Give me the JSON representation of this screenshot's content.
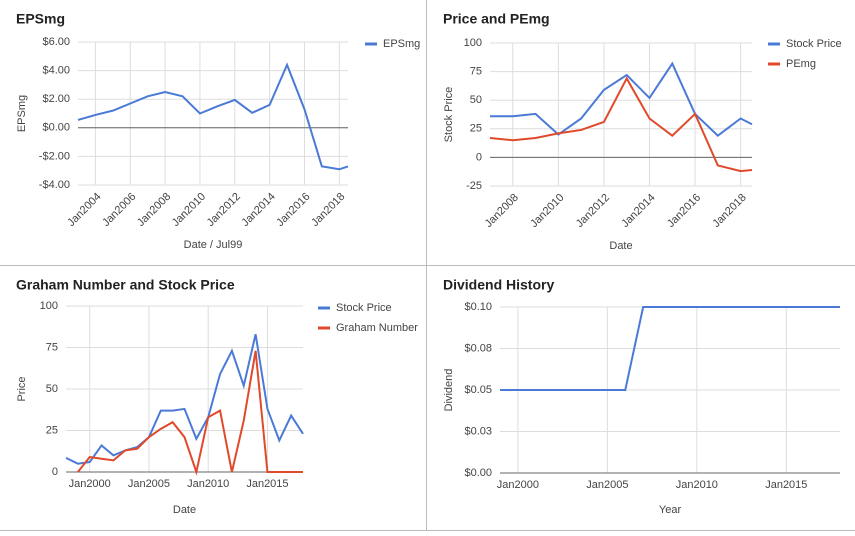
{
  "chart_data": [
    {
      "type": "line",
      "title": "EPSmg",
      "x_label": "Date / Jul99",
      "y_label": "EPSmg",
      "x": [
        2003,
        2004,
        2005,
        2006,
        2007,
        2008,
        2009,
        2010,
        2011,
        2012,
        2013,
        2014,
        2015,
        2016,
        2017,
        2018,
        2018.5
      ],
      "series": [
        {
          "name": "EPSmg",
          "color": "#4a7ad6",
          "values": [
            0.55,
            0.9,
            1.2,
            1.7,
            2.2,
            2.5,
            2.2,
            1.0,
            1.5,
            1.95,
            1.05,
            1.6,
            4.4,
            1.3,
            -2.7,
            -2.9,
            -2.7
          ]
        }
      ],
      "xlim": [
        2003,
        2018.5
      ],
      "xticks": [
        {
          "value": 2004,
          "label": "Jan2004"
        },
        {
          "value": 2006,
          "label": "Jan2006"
        },
        {
          "value": 2008,
          "label": "Jan2008"
        },
        {
          "value": 2010,
          "label": "Jan2010"
        },
        {
          "value": 2012,
          "label": "Jan2012"
        },
        {
          "value": 2014,
          "label": "Jan2014"
        },
        {
          "value": 2016,
          "label": "Jan2016"
        },
        {
          "value": 2018,
          "label": "Jan2018"
        }
      ],
      "ylim": [
        -4,
        6
      ],
      "yticks": [
        {
          "value": -4,
          "label": "-$4.00"
        },
        {
          "value": -2,
          "label": "-$2.00"
        },
        {
          "value": 0,
          "label": "$0.00"
        },
        {
          "value": 2,
          "label": "$2.00"
        },
        {
          "value": 4,
          "label": "$4.00"
        },
        {
          "value": 6,
          "label": "$6.00"
        }
      ],
      "grid": true
    },
    {
      "type": "line",
      "title": "Price and PEmg",
      "x_label": "Date",
      "y_label": "Stock Price",
      "x": [
        2007,
        2008,
        2009,
        2010,
        2011,
        2012,
        2013,
        2014,
        2015,
        2016,
        2017,
        2018,
        2018.5
      ],
      "series": [
        {
          "name": "Stock Price",
          "color": "#4a7ad6",
          "values": [
            36,
            36,
            38,
            20,
            34,
            59,
            72,
            52,
            82,
            38,
            19,
            34,
            29
          ]
        },
        {
          "name": "PEmg",
          "color": "#e04a2a",
          "values": [
            17,
            15,
            17,
            21,
            24,
            31,
            69,
            34,
            19,
            38,
            -7,
            -12,
            -11
          ]
        }
      ],
      "xlim": [
        2007,
        2018.5
      ],
      "xticks": [
        {
          "value": 2008,
          "label": "Jan2008"
        },
        {
          "value": 2010,
          "label": "Jan2010"
        },
        {
          "value": 2012,
          "label": "Jan2012"
        },
        {
          "value": 2014,
          "label": "Jan2014"
        },
        {
          "value": 2016,
          "label": "Jan2016"
        },
        {
          "value": 2018,
          "label": "Jan2018"
        }
      ],
      "ylim": [
        -25,
        100
      ],
      "yticks": [
        -25,
        0,
        25,
        50,
        75,
        100
      ],
      "grid": true
    },
    {
      "type": "line",
      "title": "Graham Number and Stock Price",
      "x_label": "Date",
      "y_label": "Price",
      "x": [
        1998,
        1999,
        2000,
        2001,
        2002,
        2003,
        2004,
        2005,
        2006,
        2007,
        2008,
        2009,
        2010,
        2011,
        2012,
        2013,
        2014,
        2015,
        2016,
        2017,
        2018
      ],
      "series": [
        {
          "name": "Stock Price",
          "color": "#4a7ad6",
          "values": [
            8.5,
            5,
            6,
            16,
            10,
            13,
            15,
            21,
            37,
            37,
            38,
            20,
            33,
            59,
            73,
            52,
            83,
            38,
            19,
            34,
            23
          ]
        },
        {
          "name": "Graham Number",
          "color": "#e04a2a",
          "values": [
            null,
            0,
            9,
            8,
            7,
            13,
            14,
            21,
            26,
            30,
            21,
            0,
            33,
            37,
            0,
            31,
            73,
            0,
            0,
            0,
            0
          ]
        }
      ],
      "xlim": [
        1998,
        2018
      ],
      "xticks": [
        {
          "value": 2000,
          "label": "Jan2000"
        },
        {
          "value": 2005,
          "label": "Jan2005"
        },
        {
          "value": 2010,
          "label": "Jan2010"
        },
        {
          "value": 2015,
          "label": "Jan2015"
        }
      ],
      "ylim": [
        0,
        100
      ],
      "yticks": [
        0,
        25,
        50,
        75,
        100
      ],
      "grid": true
    },
    {
      "type": "line",
      "title": "Dividend History",
      "x_label": "Year",
      "y_label": "Dividend",
      "x": [
        1999,
        2000,
        2001,
        2002,
        2003,
        2004,
        2005,
        2006,
        2007,
        2008,
        2009,
        2010,
        2011,
        2012,
        2013,
        2014,
        2015,
        2016,
        2017,
        2018
      ],
      "values": [
        0.05,
        0.05,
        0.05,
        0.05,
        0.05,
        0.05,
        0.05,
        0.05,
        0.1,
        0.1,
        0.1,
        0.1,
        0.1,
        0.1,
        0.1,
        0.1,
        0.1,
        0.1,
        0.1,
        0.1
      ],
      "color": "#4a7ad6",
      "xlim": [
        1999,
        2018
      ],
      "xticks": [
        {
          "value": 2000,
          "label": "Jan2000"
        },
        {
          "value": 2005,
          "label": "Jan2005"
        },
        {
          "value": 2010,
          "label": "Jan2010"
        },
        {
          "value": 2015,
          "label": "Jan2015"
        }
      ],
      "ylim": [
        0,
        0.1
      ],
      "yticks": [
        {
          "value": 0,
          "label": "$0.00"
        },
        {
          "value": 0.025,
          "label": "$0.03"
        },
        {
          "value": 0.05,
          "label": "$0.05"
        },
        {
          "value": 0.075,
          "label": "$0.08"
        },
        {
          "value": 0.1,
          "label": "$0.10"
        }
      ],
      "grid": true
    }
  ]
}
